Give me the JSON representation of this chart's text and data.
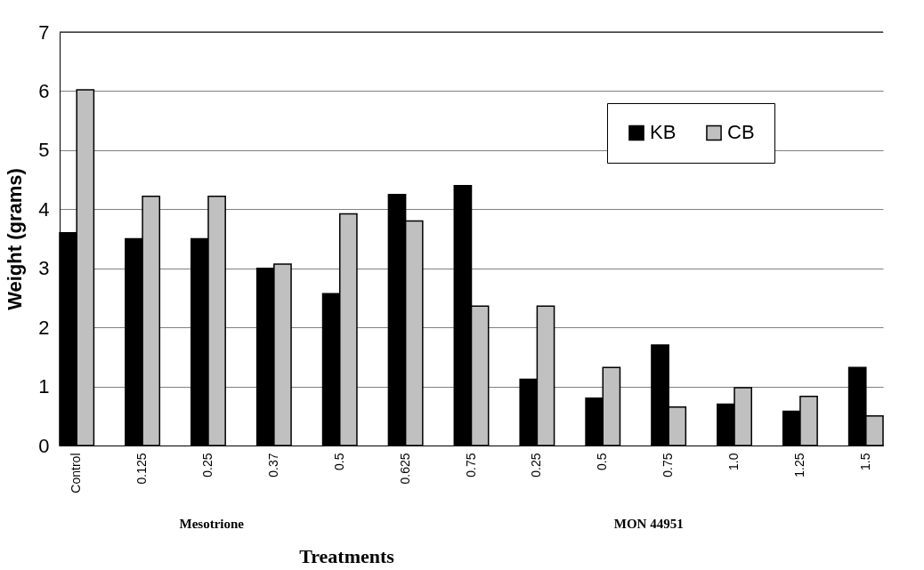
{
  "chart_data": {
    "type": "bar",
    "xlabel": "Treatments",
    "ylabel": "Weight (grams)",
    "categories": [
      "Control",
      "0.125",
      "0.25",
      "0.37",
      "0.5",
      "0.625",
      "0.75",
      "0.25",
      "0.5",
      "0.75",
      "1.0",
      "1.25",
      "1.5"
    ],
    "series": [
      {
        "name": "KB",
        "color": "#000000",
        "values": [
          3.6,
          3.5,
          3.5,
          3.0,
          2.57,
          4.25,
          4.4,
          1.12,
          0.8,
          1.7,
          0.7,
          0.58,
          1.32
        ]
      },
      {
        "name": "CB",
        "color": "#c0c0c0",
        "values": [
          6.02,
          4.22,
          4.22,
          3.07,
          3.92,
          3.8,
          2.36,
          2.36,
          1.32,
          0.65,
          0.98,
          0.83,
          0.5
        ]
      }
    ],
    "annotations": [
      "Mesotrione",
      "MON 44951"
    ],
    "ylim": [
      0,
      7
    ],
    "yticks": [
      0,
      1,
      2,
      3,
      4,
      5,
      6,
      7
    ],
    "grid": "y",
    "legend": "top right"
  }
}
